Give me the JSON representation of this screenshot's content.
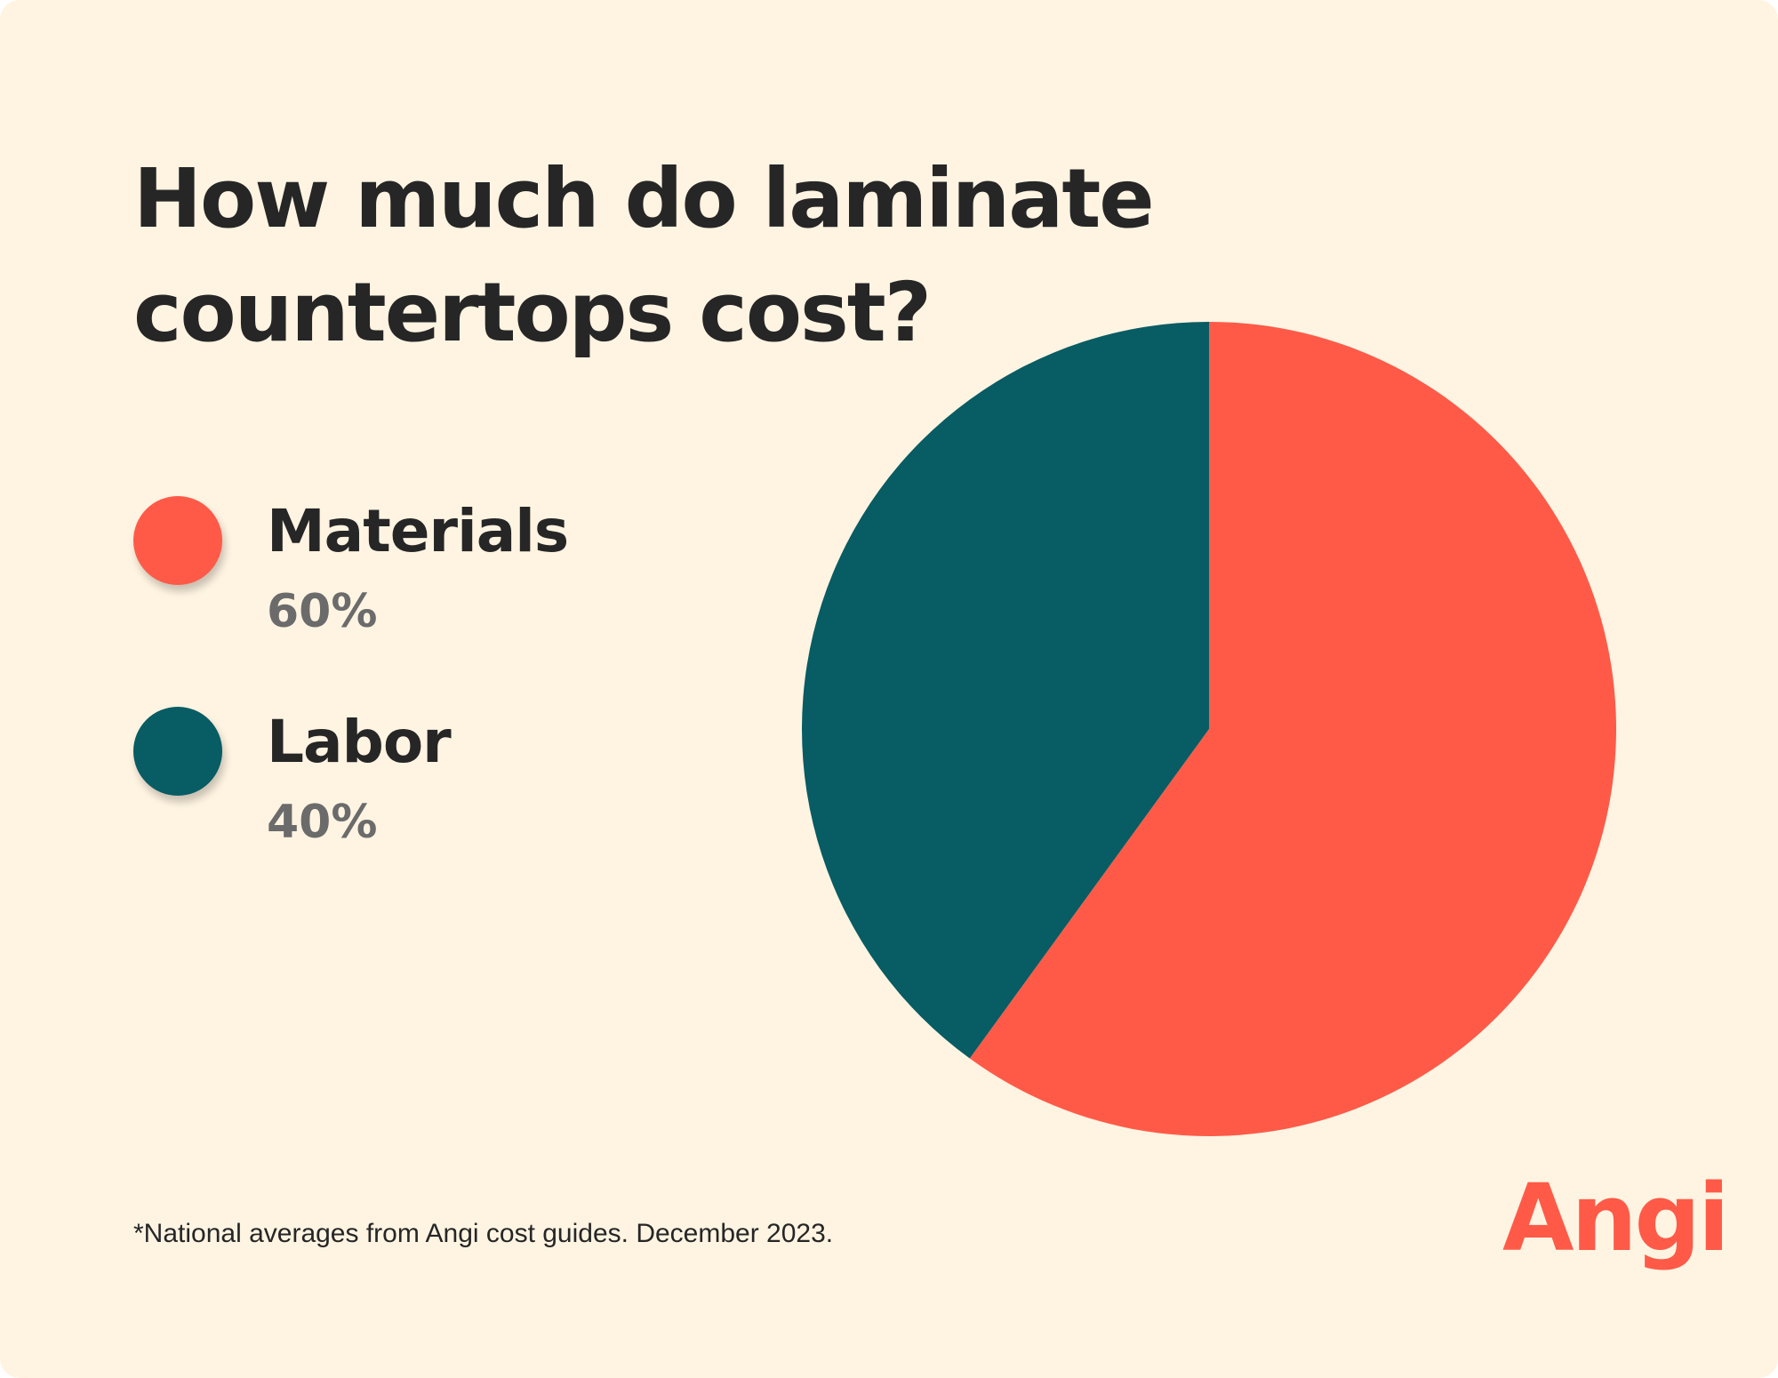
{
  "title": {
    "line1": "How much do laminate",
    "line2": "countertops cost?"
  },
  "colors": {
    "background": "#FFF4E2",
    "materials": "#FF5A48",
    "labor": "#085C63",
    "brand": "#FF5A48"
  },
  "legend": [
    {
      "label": "Materials",
      "value": "60%",
      "color": "#FF5A48"
    },
    {
      "label": "Labor",
      "value": "40%",
      "color": "#085C63"
    }
  ],
  "chart_data": {
    "type": "pie",
    "title": "How much do laminate countertops cost?",
    "categories": [
      "Materials",
      "Labor"
    ],
    "values": [
      60,
      40
    ],
    "unit": "%",
    "colors": [
      "#FF5A48",
      "#085C63"
    ],
    "start": "12 o'clock, clockwise",
    "legend_position": "left"
  },
  "footnote": "*National averages from Angi cost guides. December 2023.",
  "logo": {
    "text": "Angi"
  }
}
